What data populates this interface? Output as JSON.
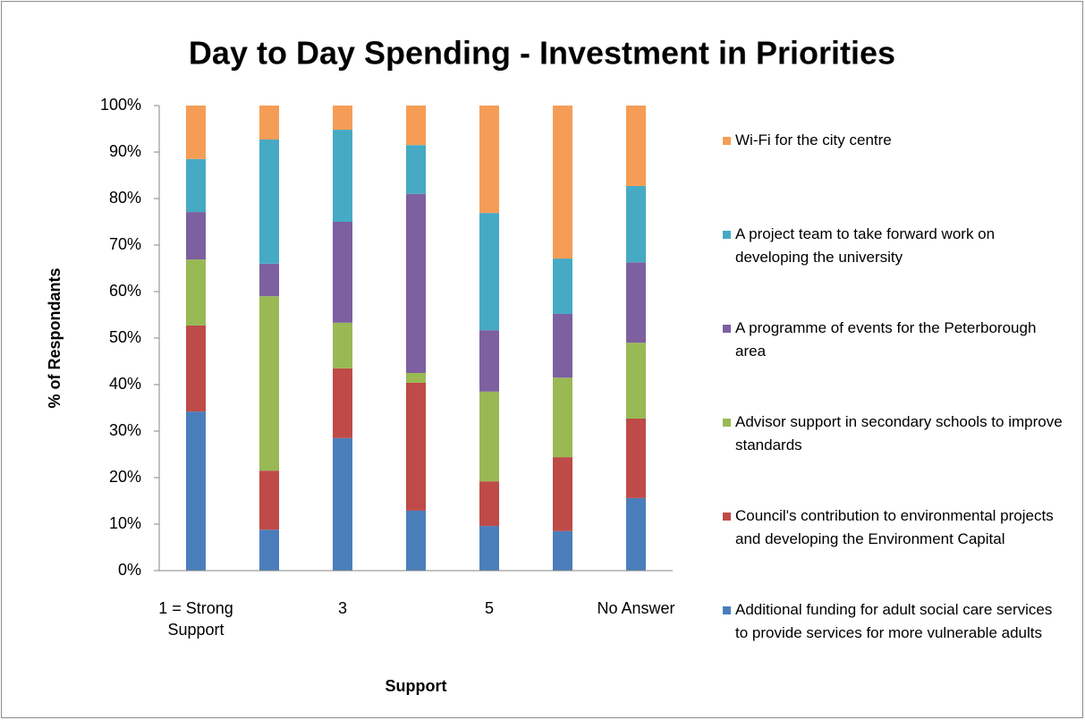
{
  "chart_data": {
    "type": "stacked_bar",
    "title": "Day to Day Spending - Investment in Priorities",
    "x_label": "Support",
    "y_label": "% of Respondants",
    "categories": [
      "1 = Strong Support",
      null,
      "3",
      null,
      "5",
      null,
      "No Answer"
    ],
    "series": [
      {
        "name": "Additional funding for adult social care services to provide services for more vulnerable adults",
        "color": "#4a7ebb",
        "values": [
          34.2,
          8.8,
          28.5,
          12.9,
          9.6,
          8.5,
          15.6
        ]
      },
      {
        "name": "Council's contribution to environmental projects and developing the Environment Capital",
        "color": "#be4b48",
        "values": [
          18.5,
          12.7,
          15.0,
          27.5,
          9.6,
          15.9,
          17.1
        ]
      },
      {
        "name": "Advisor support in secondary schools to improve standards",
        "color": "#98b954",
        "values": [
          14.2,
          37.5,
          9.8,
          2.1,
          19.3,
          17.1,
          16.3
        ]
      },
      {
        "name": "A programme of events for the Peterborough area",
        "color": "#7d60a0",
        "values": [
          10.2,
          7.0,
          21.7,
          38.5,
          13.2,
          13.7,
          17.3
        ]
      },
      {
        "name": "A project team to take forward work on developing the university",
        "color": "#46aac5",
        "values": [
          11.4,
          26.7,
          19.8,
          10.5,
          25.2,
          11.9,
          16.4
        ]
      },
      {
        "name": "Wi-Fi for the city centre",
        "color": "#f59d56",
        "values": [
          11.5,
          7.3,
          5.2,
          8.5,
          23.1,
          32.9,
          17.3
        ]
      }
    ],
    "ylim": [
      0,
      100
    ],
    "yticks": [
      {
        "value": 0,
        "label": "0%"
      },
      {
        "value": 10,
        "label": "10%"
      },
      {
        "value": 20,
        "label": "20%"
      },
      {
        "value": 30,
        "label": "30%"
      },
      {
        "value": 40,
        "label": "40%"
      },
      {
        "value": 50,
        "label": "50%"
      },
      {
        "value": 60,
        "label": "60%"
      },
      {
        "value": 70,
        "label": "70%"
      },
      {
        "value": 80,
        "label": "80%"
      },
      {
        "value": 90,
        "label": "90%"
      },
      {
        "value": 100,
        "label": "100%"
      }
    ],
    "legend": "right",
    "grid": false
  }
}
